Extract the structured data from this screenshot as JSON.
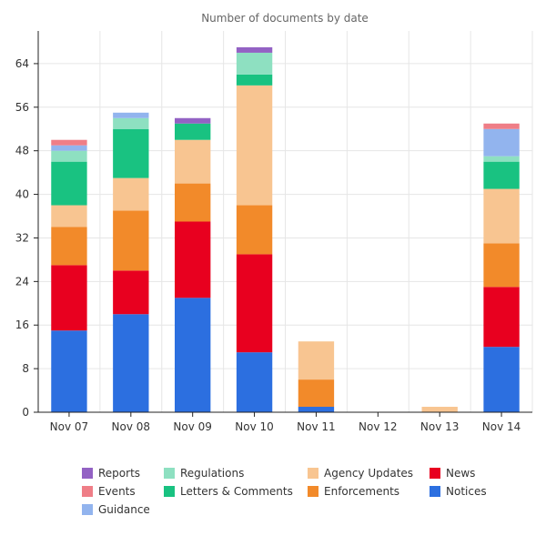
{
  "chart_data": {
    "type": "bar",
    "stacked": true,
    "title": "Number of documents by date",
    "xlabel": "",
    "ylabel": "",
    "categories": [
      "Nov 07",
      "Nov 08",
      "Nov 09",
      "Nov 10",
      "Nov 11",
      "Nov 12",
      "Nov 13",
      "Nov 14"
    ],
    "ylim": [
      0,
      70
    ],
    "yticks": [
      "0",
      "8",
      "16",
      "24",
      "32",
      "40",
      "48",
      "56",
      "64"
    ],
    "grid": true,
    "legend_position": "bottom",
    "series": [
      {
        "name": "Notices",
        "color": "#2c6fe0",
        "values": [
          15,
          18,
          21,
          11,
          1,
          0,
          0,
          12
        ]
      },
      {
        "name": "News",
        "color": "#e8001f",
        "values": [
          12,
          8,
          14,
          18,
          0,
          0,
          0,
          11
        ]
      },
      {
        "name": "Enforcements",
        "color": "#f28a2a",
        "values": [
          7,
          11,
          7,
          9,
          5,
          0,
          0,
          8
        ]
      },
      {
        "name": "Agency Updates",
        "color": "#f8c591",
        "values": [
          4,
          6,
          8,
          22,
          7,
          0,
          1,
          10
        ]
      },
      {
        "name": "Letters & Comments",
        "color": "#19c281",
        "values": [
          8,
          9,
          3,
          2,
          0,
          0,
          0,
          5
        ]
      },
      {
        "name": "Regulations",
        "color": "#8ee0c1",
        "values": [
          2,
          2,
          0,
          4,
          0,
          0,
          0,
          1
        ]
      },
      {
        "name": "Guidance",
        "color": "#92b4ee",
        "values": [
          1,
          1,
          0,
          0,
          0,
          0,
          0,
          5
        ]
      },
      {
        "name": "Events",
        "color": "#ef7e87",
        "values": [
          1,
          0,
          0,
          0,
          0,
          0,
          0,
          1
        ]
      },
      {
        "name": "Reports",
        "color": "#9362c4",
        "values": [
          0,
          0,
          1,
          1,
          0,
          0,
          0,
          0
        ]
      }
    ],
    "legend_order": [
      "Reports",
      "Events",
      "Guidance",
      "Regulations",
      "Letters & Comments",
      "Agency Updates",
      "Enforcements",
      "News",
      "Notices"
    ]
  }
}
